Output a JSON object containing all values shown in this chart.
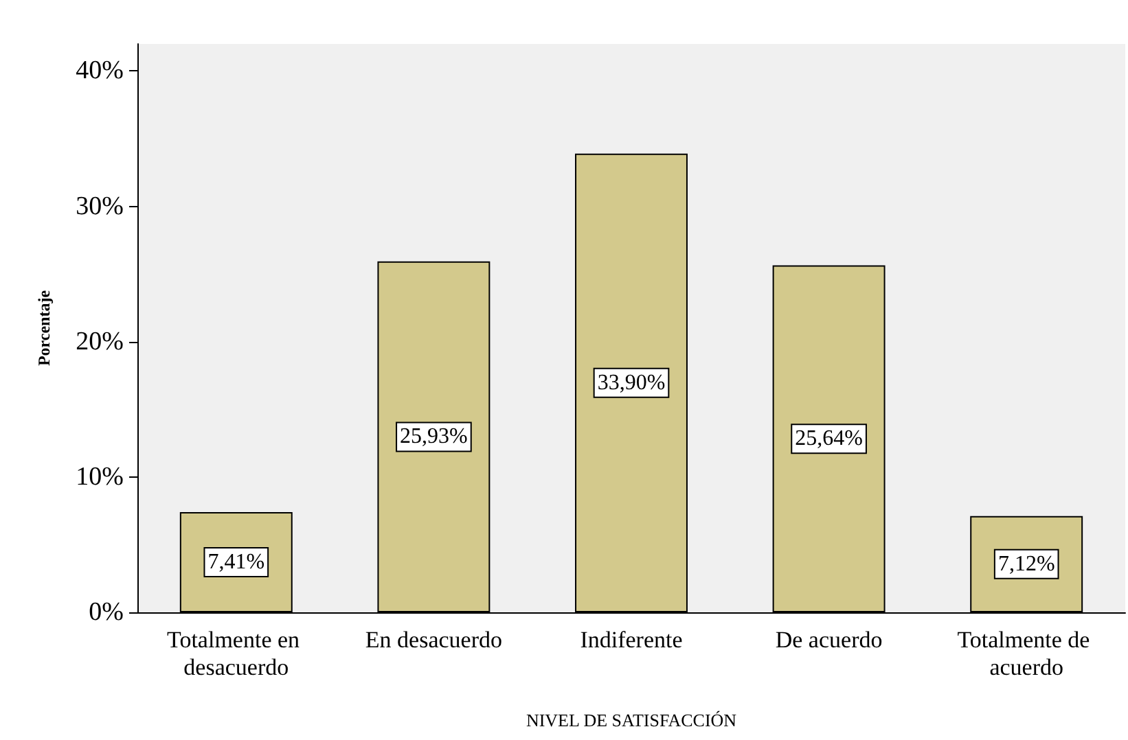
{
  "chart_data": {
    "type": "bar",
    "xlabel": "NIVEL DE SATISFACCIÓN",
    "ylabel": "Porcentaje",
    "categories": [
      "Totalmente en desacuerdo",
      "En desacuerdo",
      "Indiferente",
      "De acuerdo",
      "Totalmente de acuerdo"
    ],
    "values": [
      7.41,
      25.93,
      33.9,
      25.64,
      7.12
    ],
    "value_labels": [
      "7,41%",
      "25,93%",
      "33,90%",
      "25,64%",
      "7,12%"
    ],
    "color": "#d3c98c",
    "ylim": [
      0,
      42
    ],
    "yticks": [
      {
        "value": 0,
        "label": "0%"
      },
      {
        "value": 10,
        "label": "10%"
      },
      {
        "value": 20,
        "label": "20%"
      },
      {
        "value": 30,
        "label": "30%"
      },
      {
        "value": 40,
        "label": "40%"
      }
    ]
  }
}
